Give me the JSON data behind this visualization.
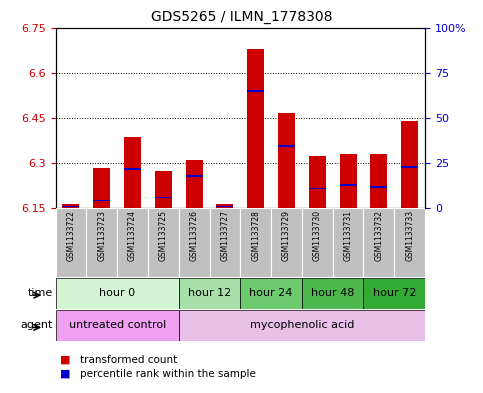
{
  "title": "GDS5265 / ILMN_1778308",
  "samples": [
    "GSM1133722",
    "GSM1133723",
    "GSM1133724",
    "GSM1133725",
    "GSM1133726",
    "GSM1133727",
    "GSM1133728",
    "GSM1133729",
    "GSM1133730",
    "GSM1133731",
    "GSM1133732",
    "GSM1133733"
  ],
  "bar_base": 6.15,
  "bar_tops": [
    6.165,
    6.285,
    6.385,
    6.275,
    6.31,
    6.165,
    6.68,
    6.465,
    6.325,
    6.33,
    6.33,
    6.44
  ],
  "blue_positions": [
    6.153,
    6.173,
    6.278,
    6.183,
    6.253,
    6.153,
    6.535,
    6.353,
    6.213,
    6.223,
    6.218,
    6.283
  ],
  "ylim": [
    6.15,
    6.75
  ],
  "yticks_left": [
    6.15,
    6.3,
    6.45,
    6.6,
    6.75
  ],
  "ytick_labels_left": [
    "6.15",
    "6.3",
    "6.45",
    "6.6",
    "6.75"
  ],
  "yticks_right_pct": [
    0,
    25,
    50,
    75,
    100
  ],
  "ytick_labels_right": [
    "0",
    "25",
    "50",
    "75",
    "100%"
  ],
  "bar_color": "#cc0000",
  "blue_color": "#0000cc",
  "time_groups": [
    {
      "label": "hour 0",
      "start": 0,
      "end": 3,
      "color": "#d4f5d4"
    },
    {
      "label": "hour 12",
      "start": 4,
      "end": 5,
      "color": "#a8dfa8"
    },
    {
      "label": "hour 24",
      "start": 6,
      "end": 7,
      "color": "#6dc96d"
    },
    {
      "label": "hour 48",
      "start": 8,
      "end": 9,
      "color": "#4db84d"
    },
    {
      "label": "hour 72",
      "start": 10,
      "end": 11,
      "color": "#33aa33"
    }
  ],
  "agent_groups": [
    {
      "label": "untreated control",
      "start": 0,
      "end": 3,
      "color": "#f0a0f0"
    },
    {
      "label": "mycophenolic acid",
      "start": 4,
      "end": 11,
      "color": "#e8c0e8"
    }
  ],
  "legend_items": [
    {
      "label": "transformed count",
      "color": "#cc0000"
    },
    {
      "label": "percentile rank within the sample",
      "color": "#0000cc"
    }
  ],
  "sample_bg": "#c0c0c0",
  "title_fontsize": 10,
  "tick_fontsize": 8,
  "sample_fontsize": 5.5,
  "row_fontsize": 8,
  "legend_fontsize": 7.5
}
